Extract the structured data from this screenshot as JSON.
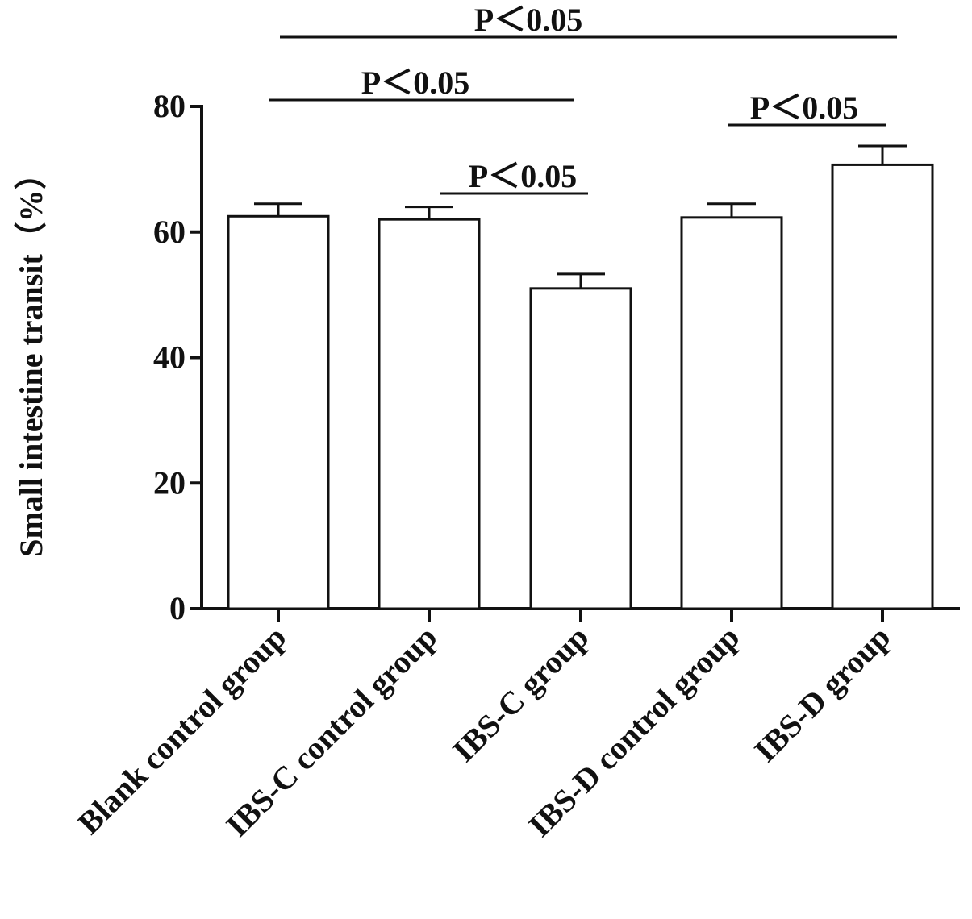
{
  "chart_data": {
    "type": "bar",
    "title": "",
    "xlabel": "",
    "ylabel": "Small intestine transit（%）",
    "ylim": [
      0,
      80
    ],
    "yticks": [
      0,
      20,
      40,
      60,
      80
    ],
    "grid": false,
    "categories": [
      "Blank control group",
      "IBS-C control group",
      "IBS-C group",
      "IBS-D control group",
      "IBS-D group"
    ],
    "values": [
      62.5,
      62.0,
      51.0,
      62.3,
      70.7
    ],
    "errors": [
      2.0,
      2.0,
      2.3,
      2.2,
      3.0
    ],
    "significance": [
      {
        "from": "Blank control group",
        "to": "IBS-D group",
        "label": "P＜0.05"
      },
      {
        "from": "Blank control group",
        "to": "IBS-C group",
        "label": "P＜0.05"
      },
      {
        "from": "IBS-C control group",
        "to": "IBS-C group",
        "label": "P＜0.05"
      },
      {
        "from": "IBS-D control group",
        "to": "IBS-D group",
        "label": "P＜0.05"
      }
    ],
    "colors": {
      "bar_fill": "#ffffff",
      "stroke": "#111111"
    }
  }
}
